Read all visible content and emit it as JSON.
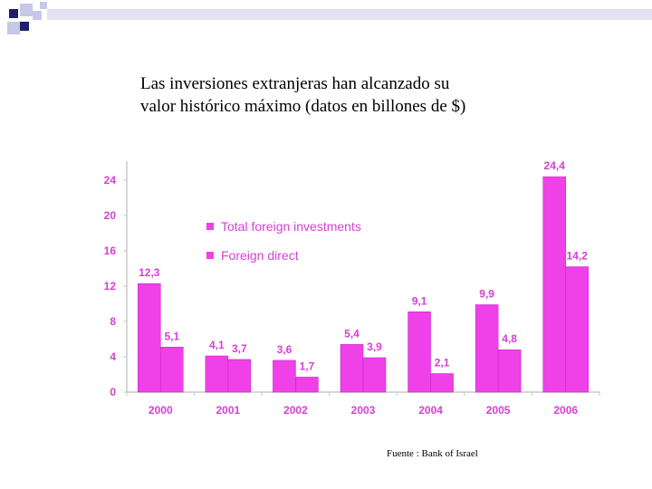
{
  "title": {
    "line1": "Las inversiones extranjeras han alcanzado su",
    "line2": "valor histórico máximo (datos en billones de $)"
  },
  "source": "Fuente : Bank of Israel",
  "colors": {
    "bar": "#f040e8",
    "bar_outline": "#c020c0",
    "label": "#d63fd6",
    "axis": "#c8c8c8",
    "deco_dark": "#1f1f6b",
    "deco_light": "#c7c7e8"
  },
  "chart_data": {
    "type": "bar",
    "categories": [
      "2000",
      "2001",
      "2002",
      "2003",
      "2004",
      "2005",
      "2006"
    ],
    "series": [
      {
        "name": "Total foreign investments",
        "values": [
          12.3,
          4.1,
          3.6,
          5.4,
          9.1,
          9.9,
          24.4
        ],
        "labels": [
          "12,3",
          "4,1",
          "3,6",
          "5,4",
          "9,1",
          "9,9",
          "24,4"
        ]
      },
      {
        "name": "Foreign direct",
        "values": [
          5.1,
          3.7,
          1.7,
          3.9,
          2.1,
          4.8,
          14.2
        ],
        "labels": [
          "5,1",
          "3,7",
          "1,7",
          "3,9",
          "2,1",
          "4,8",
          "14,2"
        ]
      }
    ],
    "yticks": [
      "0",
      "4",
      "8",
      "12",
      "16",
      "20",
      "24"
    ],
    "ylim": [
      0,
      26
    ],
    "grid": false,
    "legend": "top-left"
  }
}
